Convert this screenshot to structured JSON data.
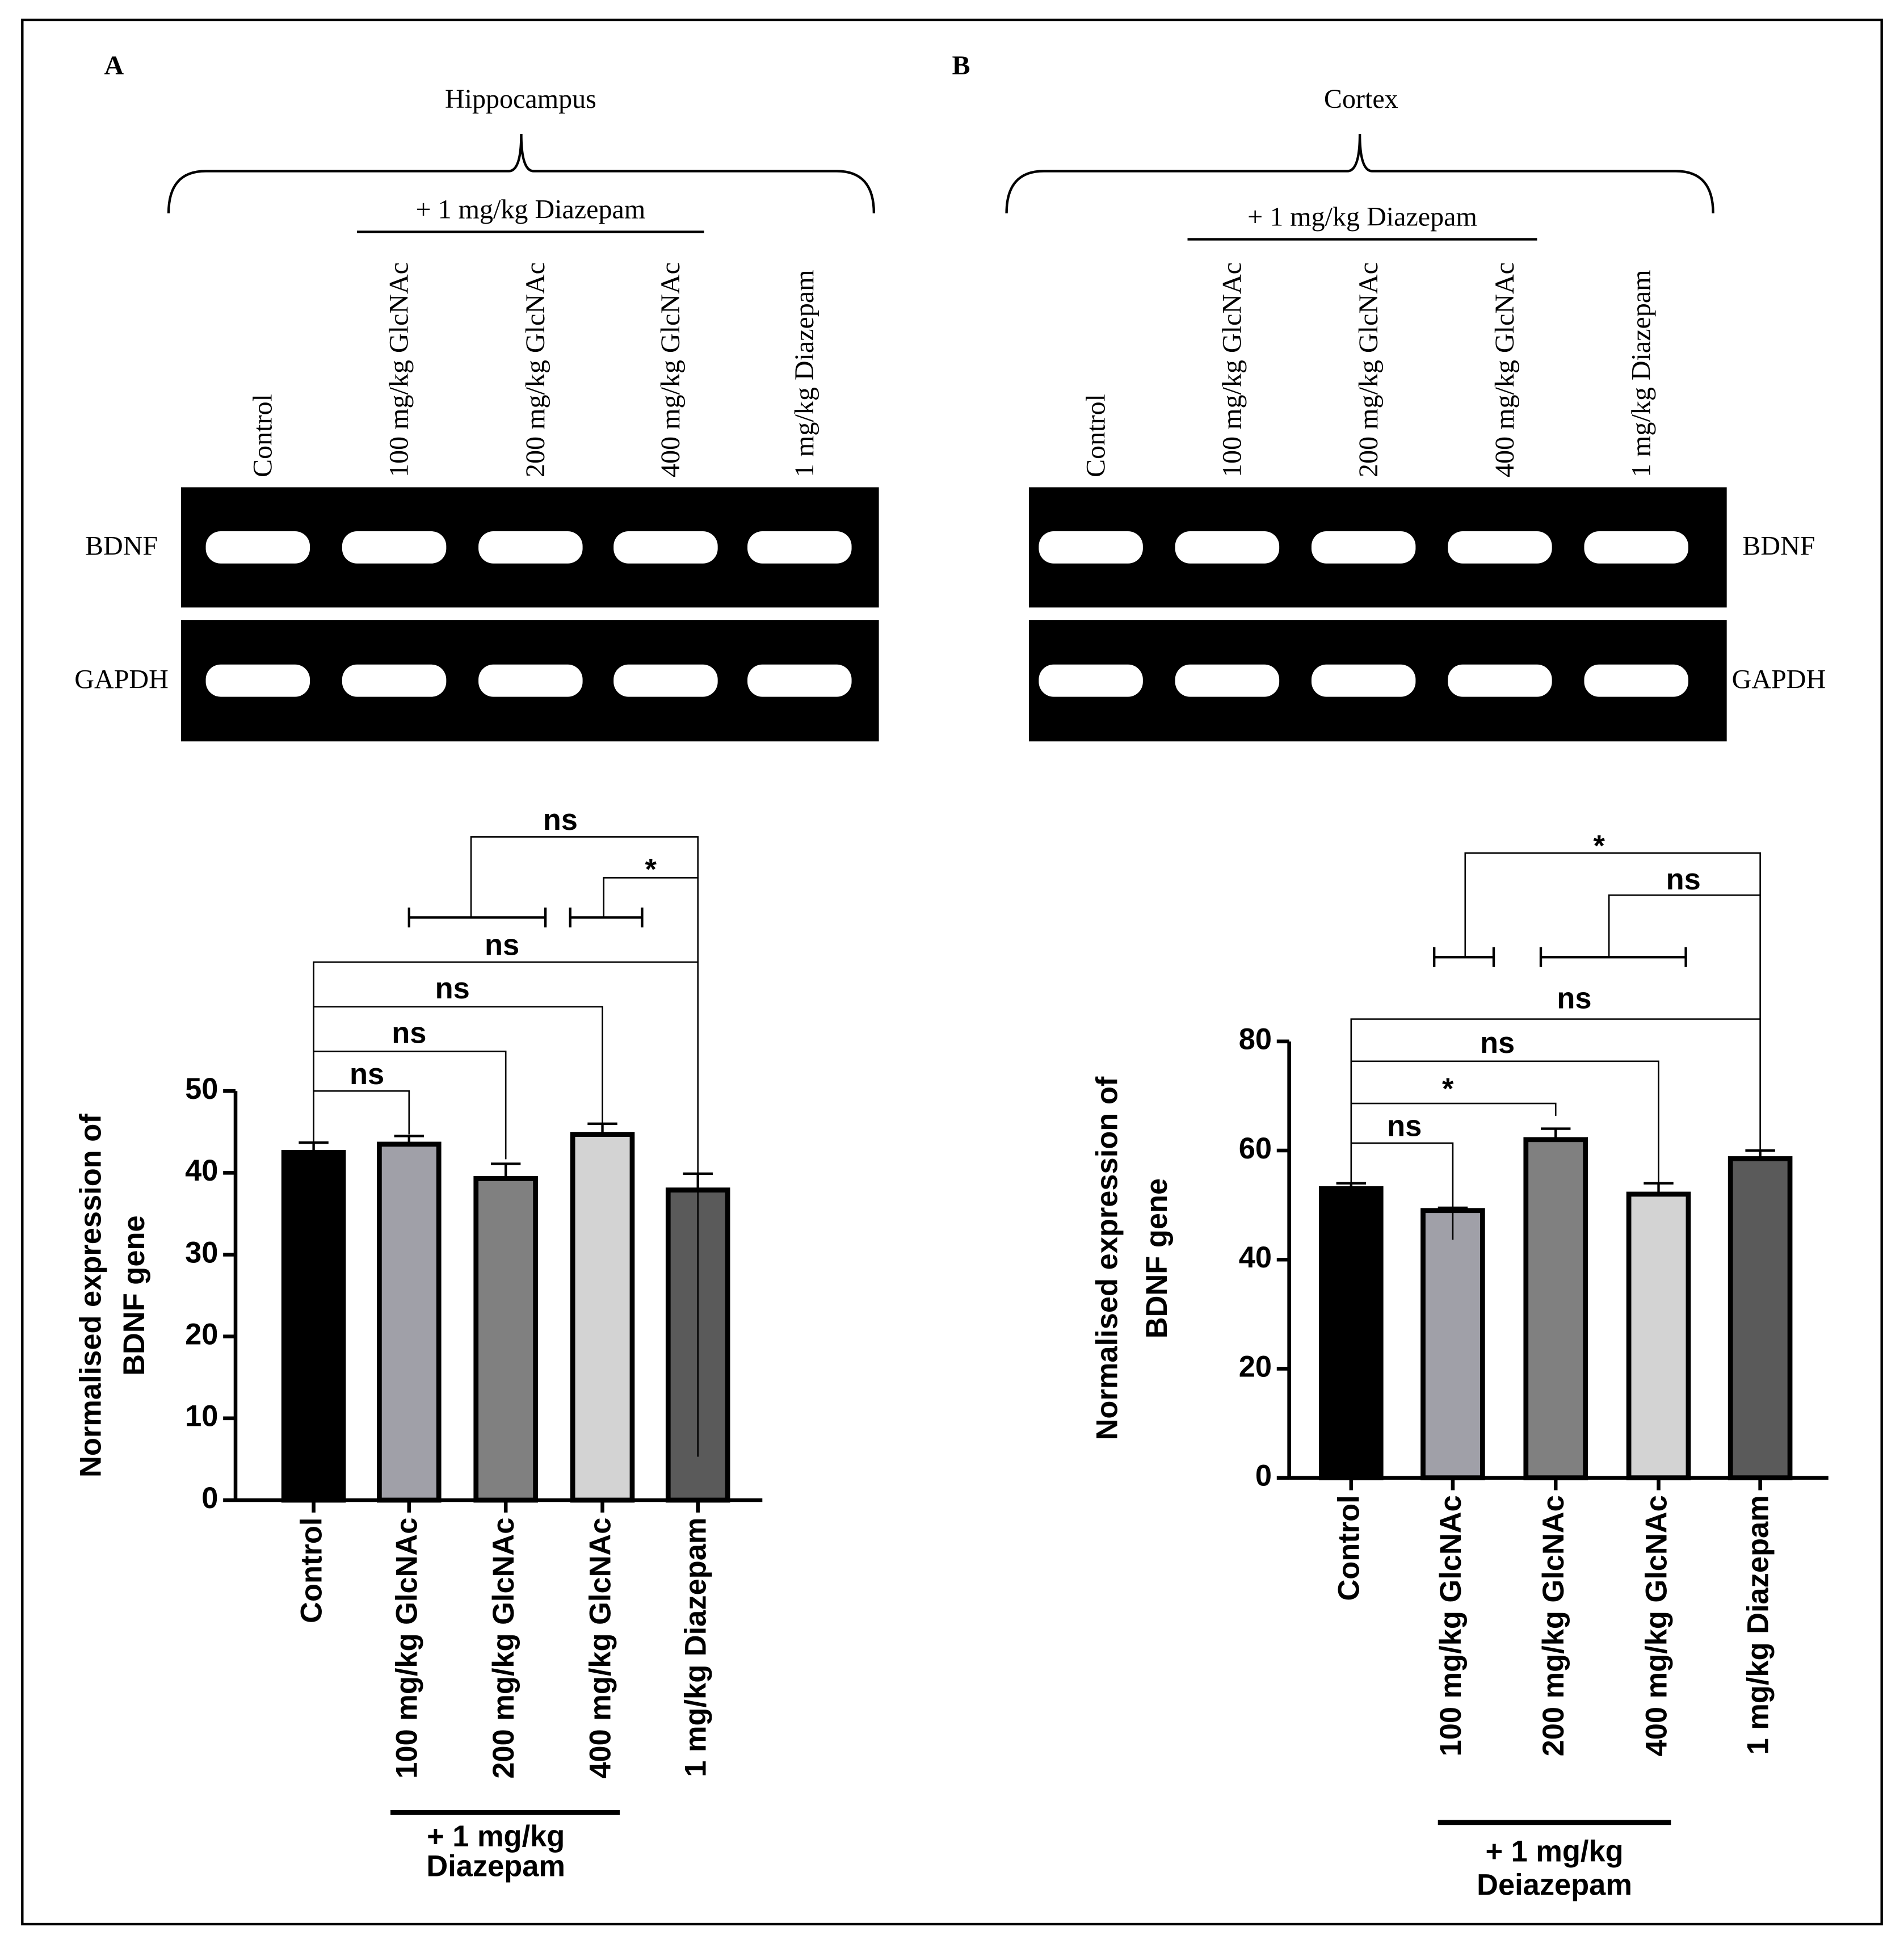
{
  "chart_data": [
    {
      "type": "bar",
      "panel_label": "A",
      "region": "Hippocampus",
      "treatment_label": "+ 1 mg/kg Diazepam",
      "gel_rows": [
        "BDNF",
        "GAPDH"
      ],
      "gel_lanes": [
        "Control",
        "100 mg/kg GlcNAc",
        "200 mg/kg GlcNAc",
        "400 mg/kg GlcNAc",
        "1 mg/kg Diazepam"
      ],
      "ylabel": [
        "Normalised expression of",
        "BDNF gene"
      ],
      "categories": [
        "Control",
        "100 mg/kg GlcNAc",
        "200 mg/kg GlcNAc",
        "400 mg/kg GlcNAc",
        "1 mg/kg Diazepam"
      ],
      "values": [
        42.5,
        43.5,
        39.3,
        44.7,
        37.9
      ],
      "errors": [
        1.2,
        1.0,
        1.8,
        1.3,
        2.0
      ],
      "colors": [
        "#000000",
        "#a0a0a8",
        "#808080",
        "#d3d3d3",
        "#5a5a5a"
      ],
      "ylim": [
        0,
        50
      ],
      "yticks": [
        0,
        10,
        20,
        30,
        40,
        50
      ],
      "group_label": [
        "+ 1 mg/kg",
        "Diazepam"
      ],
      "annotations": [
        "ns",
        "*",
        "ns",
        "ns",
        "ns",
        "ns"
      ]
    },
    {
      "type": "bar",
      "panel_label": "B",
      "region": "Cortex",
      "treatment_label": "+ 1 mg/kg Diazepam",
      "gel_rows": [
        "BDNF",
        "GAPDH"
      ],
      "gel_lanes": [
        "Control",
        "100 mg/kg GlcNAc",
        "200 mg/kg GlcNAc",
        "400 mg/kg GlcNAc",
        "1 mg/kg Diazepam"
      ],
      "ylabel": [
        "Normalised expression of",
        "BDNF gene"
      ],
      "categories": [
        "Control",
        "100 mg/kg GlcNAc",
        "200 mg/kg GlcNAc",
        "400 mg/kg GlcNAc",
        "1 mg/kg Diazepam"
      ],
      "values": [
        53,
        49,
        62,
        52,
        58.5
      ],
      "errors": [
        1.0,
        0.5,
        2.0,
        2.0,
        1.5
      ],
      "colors": [
        "#000000",
        "#a0a0a8",
        "#808080",
        "#d3d3d3",
        "#5a5a5a"
      ],
      "ylim": [
        0,
        80
      ],
      "yticks": [
        0,
        20,
        40,
        60,
        80
      ],
      "group_label": [
        "+ 1 mg/kg",
        "Deiazepam"
      ],
      "annotations": [
        "*",
        "ns",
        "ns",
        "ns",
        "*",
        "ns"
      ]
    }
  ]
}
